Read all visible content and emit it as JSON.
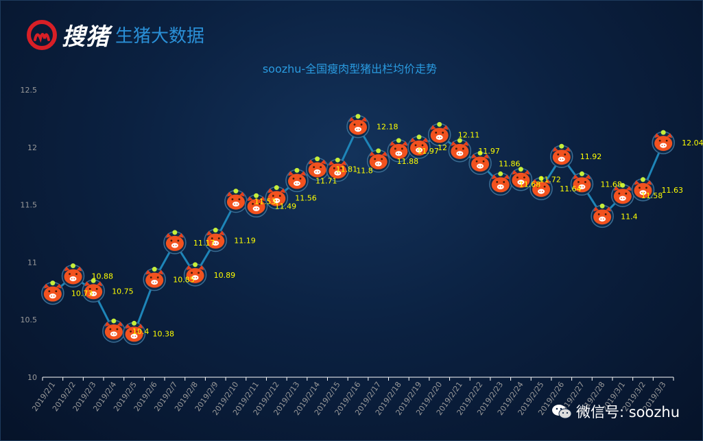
{
  "brand": {
    "name": "搜猪",
    "subtitle": "生猪大数据"
  },
  "footer": {
    "text": "微信号: soozhu"
  },
  "colors": {
    "line": "#1e85b8",
    "label": "#ffff00",
    "title": "#2a9be0",
    "axis": "#ffffff",
    "tick_label": "#9a9a9a"
  },
  "chart_data": {
    "type": "line",
    "title": "soozhu-全国瘦肉型猪出栏均价走势",
    "xlabel": "",
    "ylabel": "",
    "ylim": [
      10,
      12.5
    ],
    "yticks": [
      "10",
      "10.5",
      "11",
      "11.5",
      "12",
      "12.5"
    ],
    "grid": false,
    "categories": [
      "2019/2/1",
      "2019/2/2",
      "2019/2/3",
      "2019/2/4",
      "2019/2/5",
      "2019/2/6",
      "2019/2/7",
      "2019/2/8",
      "2019/2/9",
      "2019/2/10",
      "2019/2/11",
      "2019/2/12",
      "2019/2/13",
      "2019/2/14",
      "2019/2/15",
      "2019/2/16",
      "2019/2/17",
      "2019/2/18",
      "2019/2/19",
      "2019/2/20",
      "2019/2/21",
      "2019/2/22",
      "2019/2/23",
      "2019/2/24",
      "2019/2/25",
      "2019/2/26",
      "2019/2/27",
      "2019/2/28",
      "2019/3/1",
      "2019/3/2",
      "2019/3/3"
    ],
    "values": [
      10.73,
      10.88,
      10.75,
      10.4,
      10.38,
      10.85,
      11.17,
      10.89,
      11.19,
      11.53,
      11.49,
      11.56,
      11.71,
      11.81,
      11.8,
      12.18,
      11.88,
      11.97,
      12,
      12.11,
      11.97,
      11.86,
      11.68,
      11.72,
      11.64,
      11.92,
      11.68,
      11.4,
      11.58,
      11.63,
      12.04
    ],
    "labels": [
      "10.73",
      "10.88",
      "10.75",
      "10.4",
      "10.38",
      "10.85",
      "11.17",
      "10.89",
      "11.19",
      "11.53",
      "11.49",
      "11.56",
      "11.71",
      "11.81",
      "11.8",
      "12.18",
      "11.88",
      "11.97",
      "12",
      "12.11",
      "11.97",
      "11.86",
      "11.68",
      "11.72",
      "11.64",
      "11.92",
      "11.68",
      "11.4",
      "11.58",
      "11.63",
      "12.04"
    ],
    "marker": "pig-face-icon"
  }
}
